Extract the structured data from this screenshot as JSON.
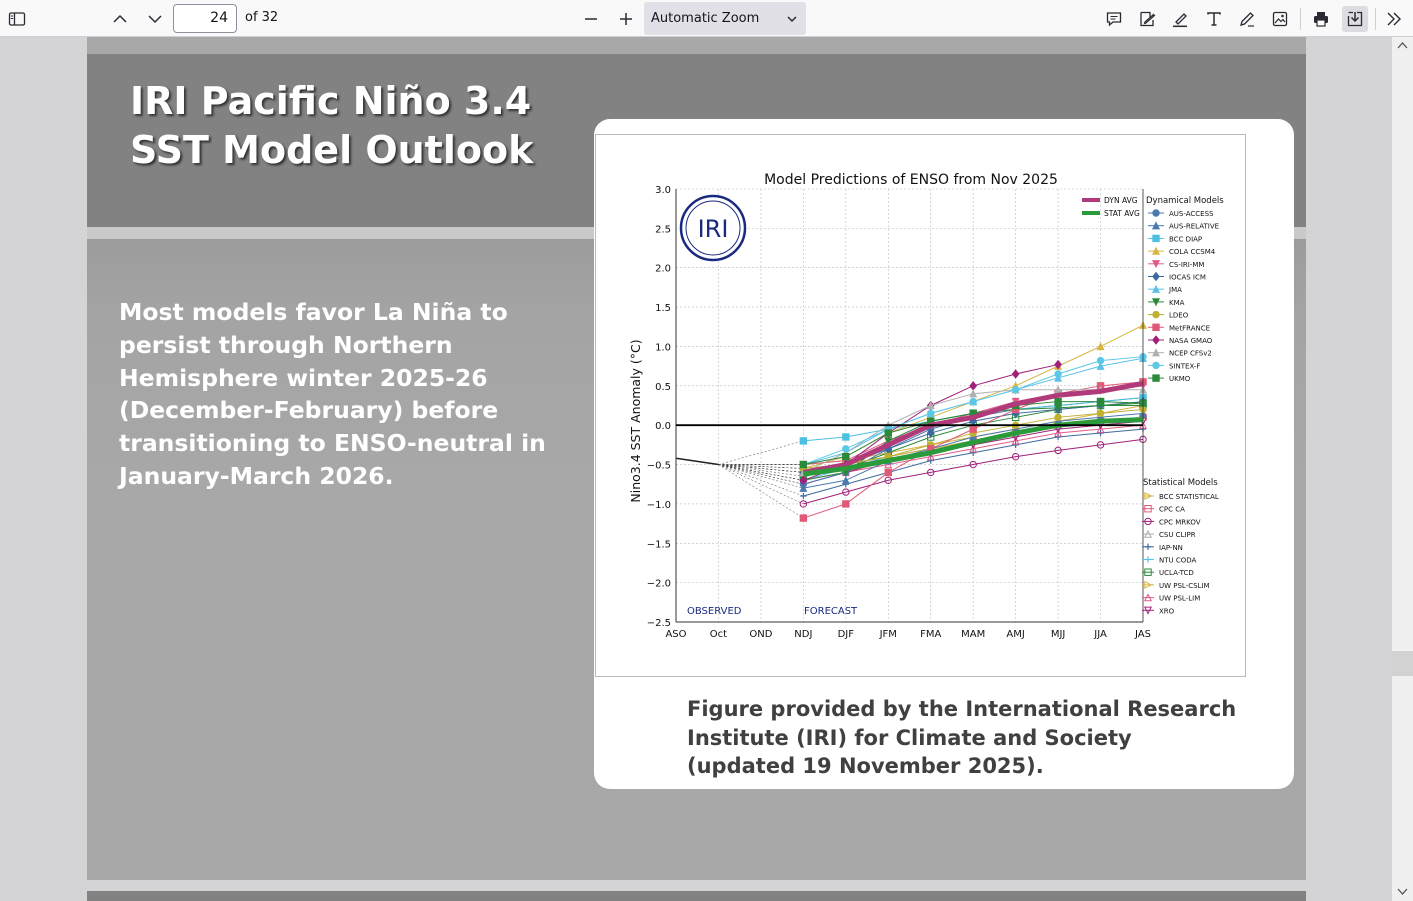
{
  "toolbar": {
    "page_number": "24",
    "page_total": "of 32",
    "zoom": "Automatic Zoom"
  },
  "slide": {
    "title_line1": "IRI Pacific Niño 3.4",
    "title_line2": "SST Model Outlook",
    "body": "Most models favor La Niña to persist through Northern Hemisphere winter 2025-26 (December-February) before transitioning to ENSO-neutral in January-March 2026.",
    "caption": "Figure provided by the International Research Institute (IRI) for Climate and Society (updated 19 November 2025)."
  },
  "chart_data": {
    "type": "line",
    "title": "Model Predictions of ENSO from Nov 2025",
    "ylabel": "Nino3.4 SST Anomaly (°C)",
    "xlabel": "",
    "logo": "IRI",
    "observed_label": "OBSERVED",
    "forecast_label": "FORECAST",
    "categories": [
      "ASO",
      "Oct",
      "OND",
      "NDJ",
      "DJF",
      "JFM",
      "FMA",
      "MAM",
      "AMJ",
      "MJJ",
      "JJA",
      "JAS"
    ],
    "y_ticks": [
      "3.0",
      "2.5",
      "2.0",
      "1.5",
      "1.0",
      "0.5",
      "0.0",
      "−0.5",
      "−1.0",
      "−1.5",
      "−2.0",
      "−2.5"
    ],
    "ylim": [
      -2.5,
      3.0
    ],
    "grid": true,
    "observed": [
      -0.42,
      -0.5
    ],
    "avg_series": [
      {
        "name": "DYN AVG",
        "color": "#b03a7a",
        "values": [
          null,
          null,
          null,
          -0.6,
          -0.5,
          -0.25,
          0.0,
          0.1,
          0.27,
          0.38,
          0.43,
          0.53
        ]
      },
      {
        "name": "STAT AVG",
        "color": "#2a9a3a",
        "values": [
          null,
          null,
          null,
          -0.62,
          -0.55,
          -0.45,
          -0.35,
          -0.22,
          -0.1,
          0.0,
          0.05,
          0.07
        ]
      }
    ],
    "dynamical_title": "Dynamical Models",
    "dynamical_models": [
      {
        "name": "AUS-ACCESS",
        "color": "#4a7ab0",
        "marker": "o",
        "values": [
          -0.75,
          -0.6,
          -0.3,
          -0.05,
          0.1,
          0.2,
          0.25,
          0.3,
          0.35
        ]
      },
      {
        "name": "AUS-RELATIVE",
        "color": "#4a7ab0",
        "marker": "^",
        "values": [
          -0.8,
          -0.7,
          -0.45,
          -0.3,
          -0.15,
          -0.05,
          0.05,
          0.1,
          0.15
        ]
      },
      {
        "name": "BCC DIAP",
        "color": "#4cc0e0",
        "marker": "s",
        "values": [
          -0.2,
          -0.15,
          -0.05,
          0.05,
          0.15,
          0.2,
          0.25,
          0.3,
          0.35
        ]
      },
      {
        "name": "COLA CCSM4",
        "color": "#d8b440",
        "marker": "^",
        "values": [
          -0.55,
          -0.4,
          -0.1,
          0.1,
          0.3,
          0.5,
          0.75,
          1.0,
          1.27
        ]
      },
      {
        "name": "CS-IRI-MM",
        "color": "#e05a8a",
        "marker": "v",
        "values": [
          -0.5,
          -0.45,
          -0.2,
          0.0,
          0.15,
          0.3,
          0.4,
          0.45,
          0.5
        ]
      },
      {
        "name": "IOCAS ICM",
        "color": "#3c6aa0",
        "marker": "D",
        "values": [
          -0.6,
          -0.5,
          -0.3,
          -0.1,
          0.05,
          0.15,
          0.2,
          0.25,
          0.3
        ]
      },
      {
        "name": "JMA",
        "color": "#5cc0e8",
        "marker": "^",
        "values": [
          -0.5,
          -0.35,
          -0.05,
          0.15,
          0.3,
          0.45,
          0.6,
          0.75,
          0.85
        ]
      },
      {
        "name": "KMA",
        "color": "#2a8a3a",
        "marker": "v",
        "values": [
          -0.7,
          -0.6,
          -0.2,
          0.05,
          0.15,
          0.2,
          0.22,
          0.25,
          0.28
        ]
      },
      {
        "name": "LDEO",
        "color": "#c0b030",
        "marker": "o",
        "values": [
          -0.55,
          -0.5,
          -0.4,
          -0.25,
          -0.1,
          0.0,
          0.1,
          0.15,
          0.2
        ]
      },
      {
        "name": "MetFRANCE",
        "color": "#e05a78",
        "marker": "s",
        "values": [
          -1.18,
          -1.0,
          -0.6,
          -0.3,
          -0.05,
          0.2,
          0.4,
          0.5,
          0.55
        ]
      },
      {
        "name": "NASA GMAO",
        "color": "#a0207a",
        "marker": "D",
        "values": [
          -0.7,
          -0.5,
          -0.1,
          0.25,
          0.5,
          0.65,
          0.77,
          null,
          null
        ]
      },
      {
        "name": "NCEP CFSv2",
        "color": "#b0b0b0",
        "marker": "^",
        "values": [
          -0.6,
          -0.35,
          0.0,
          0.25,
          0.4,
          0.45,
          0.45,
          0.45,
          0.45
        ]
      },
      {
        "name": "SINTEX-F",
        "color": "#5cc8e8",
        "marker": "o",
        "values": [
          -0.5,
          -0.3,
          -0.05,
          0.15,
          0.3,
          0.45,
          0.65,
          0.82,
          0.87
        ]
      },
      {
        "name": "UKMO",
        "color": "#2a8a3a",
        "marker": "s",
        "values": [
          -0.5,
          -0.4,
          -0.1,
          0.05,
          0.15,
          0.25,
          0.3,
          0.3,
          0.28
        ]
      }
    ],
    "statistical_title": "Statistical Models",
    "statistical_models": [
      {
        "name": "BCC STATISTICAL",
        "color": "#d8b440",
        "marker": ">",
        "values": [
          -0.5,
          -0.45,
          -0.35,
          -0.25,
          -0.15,
          -0.05,
          0.05,
          0.15,
          0.25
        ]
      },
      {
        "name": "CPC CA",
        "color": "#e05a78",
        "marker": "s",
        "values": [
          -0.6,
          -0.5,
          -0.4,
          -0.3,
          -0.2,
          -0.1,
          0.0,
          0.05,
          0.1
        ]
      },
      {
        "name": "CPC MRKOV",
        "color": "#a0207a",
        "marker": "o",
        "values": [
          -1.0,
          -0.85,
          -0.7,
          -0.6,
          -0.5,
          -0.4,
          -0.32,
          -0.25,
          -0.18
        ]
      },
      {
        "name": "CSU CLIPR",
        "color": "#b0b0b0",
        "marker": "^",
        "values": [
          -0.6,
          -0.5,
          -0.4,
          -0.3,
          -0.2,
          -0.1,
          0.0,
          0.05,
          0.1
        ]
      },
      {
        "name": "IAP-NN",
        "color": "#3c6aa0",
        "marker": "+",
        "values": [
          -0.9,
          -0.75,
          -0.6,
          -0.45,
          -0.35,
          -0.25,
          -0.15,
          -0.1,
          -0.05
        ]
      },
      {
        "name": "NTU CODA",
        "color": "#5cc0e8",
        "marker": "+",
        "values": [
          -0.7,
          -0.55,
          -0.4,
          -0.3,
          -0.2,
          -0.1,
          0.0,
          0.05,
          0.1
        ]
      },
      {
        "name": "UCLA-TCD",
        "color": "#2a8a3a",
        "marker": "s",
        "values": [
          -0.65,
          -0.55,
          -0.35,
          -0.15,
          0.0,
          0.1,
          0.2,
          0.25,
          0.25
        ]
      },
      {
        "name": "UW PSL-CSLIM",
        "color": "#d8b440",
        "marker": ">",
        "values": [
          -0.55,
          -0.5,
          -0.4,
          -0.3,
          -0.2,
          -0.1,
          0.0,
          0.05,
          0.1
        ]
      },
      {
        "name": "UW PSL-LIM",
        "color": "#e05a8a",
        "marker": "^",
        "values": [
          -0.7,
          -0.6,
          -0.5,
          -0.4,
          -0.3,
          -0.2,
          -0.1,
          -0.05,
          0.0
        ]
      },
      {
        "name": "XRO",
        "color": "#a0207a",
        "marker": "v",
        "values": [
          -0.75,
          -0.6,
          -0.45,
          -0.35,
          -0.25,
          -0.15,
          -0.05,
          0.0,
          0.05
        ]
      }
    ]
  },
  "colors": {
    "toolbar_bg": "#f9f9fa",
    "viewer_bg": "#d4d4d7",
    "slide_bg": "#a8a8a8",
    "slide_band": "#828282"
  },
  "icons": [
    "sidebar-toggle-icon",
    "chevron-up-icon",
    "chevron-down-icon",
    "minus-icon",
    "plus-icon",
    "comment-icon",
    "signature-icon",
    "highlight-icon",
    "text-icon",
    "draw-icon",
    "image-icon",
    "print-icon",
    "save-icon",
    "tools-menu-icon"
  ]
}
